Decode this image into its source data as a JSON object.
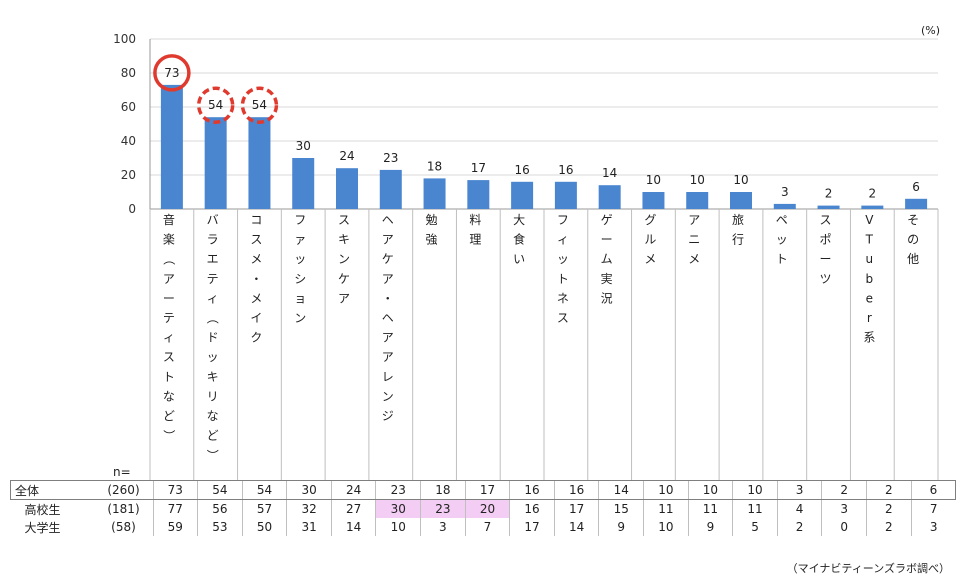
{
  "chart_data": {
    "type": "bar",
    "unit": "(%)",
    "ylim": [
      0,
      100
    ],
    "yticks": [
      0,
      20,
      40,
      60,
      80,
      100
    ],
    "grid": true,
    "bar_color": "#4a86d0",
    "highlight_circle_color": "#e03a2e",
    "categories": [
      "音楽（アーティストなど）",
      "バラエティ（ドッキリなど）",
      "コスメ・メイク",
      "ファッション",
      "スキンケア",
      "ヘアケア・ヘアアレンジ",
      "勉強",
      "料理",
      "大食い",
      "フィットネス",
      "ゲーム実況",
      "グルメ",
      "アニメ",
      "旅行",
      "ペット",
      "スポーツ",
      "VTuber系",
      "その他"
    ],
    "values": [
      73,
      54,
      54,
      30,
      24,
      23,
      18,
      17,
      16,
      16,
      14,
      10,
      10,
      10,
      3,
      2,
      2,
      6
    ],
    "circled": [
      {
        "index": 0,
        "style": "solid"
      },
      {
        "index": 1,
        "style": "dashed"
      },
      {
        "index": 2,
        "style": "dashed"
      }
    ]
  },
  "table": {
    "n_label": "n=",
    "rows": [
      {
        "key": "all",
        "label": "全体",
        "n": "(260)",
        "values": [
          73,
          54,
          54,
          30,
          24,
          23,
          18,
          17,
          16,
          16,
          14,
          10,
          10,
          10,
          3,
          2,
          2,
          6
        ]
      },
      {
        "key": "hs",
        "label": "高校生",
        "n": "(181)",
        "values": [
          77,
          56,
          57,
          32,
          27,
          30,
          23,
          20,
          16,
          17,
          15,
          11,
          11,
          11,
          4,
          3,
          2,
          7
        ],
        "highlight": [
          5,
          6,
          7
        ]
      },
      {
        "key": "uni",
        "label": "大学生",
        "n": "(58)",
        "values": [
          59,
          53,
          50,
          31,
          14,
          10,
          3,
          7,
          17,
          14,
          9,
          10,
          9,
          5,
          2,
          0,
          2,
          3
        ]
      }
    ]
  },
  "source": "（マイナビティーンズラボ調べ）"
}
